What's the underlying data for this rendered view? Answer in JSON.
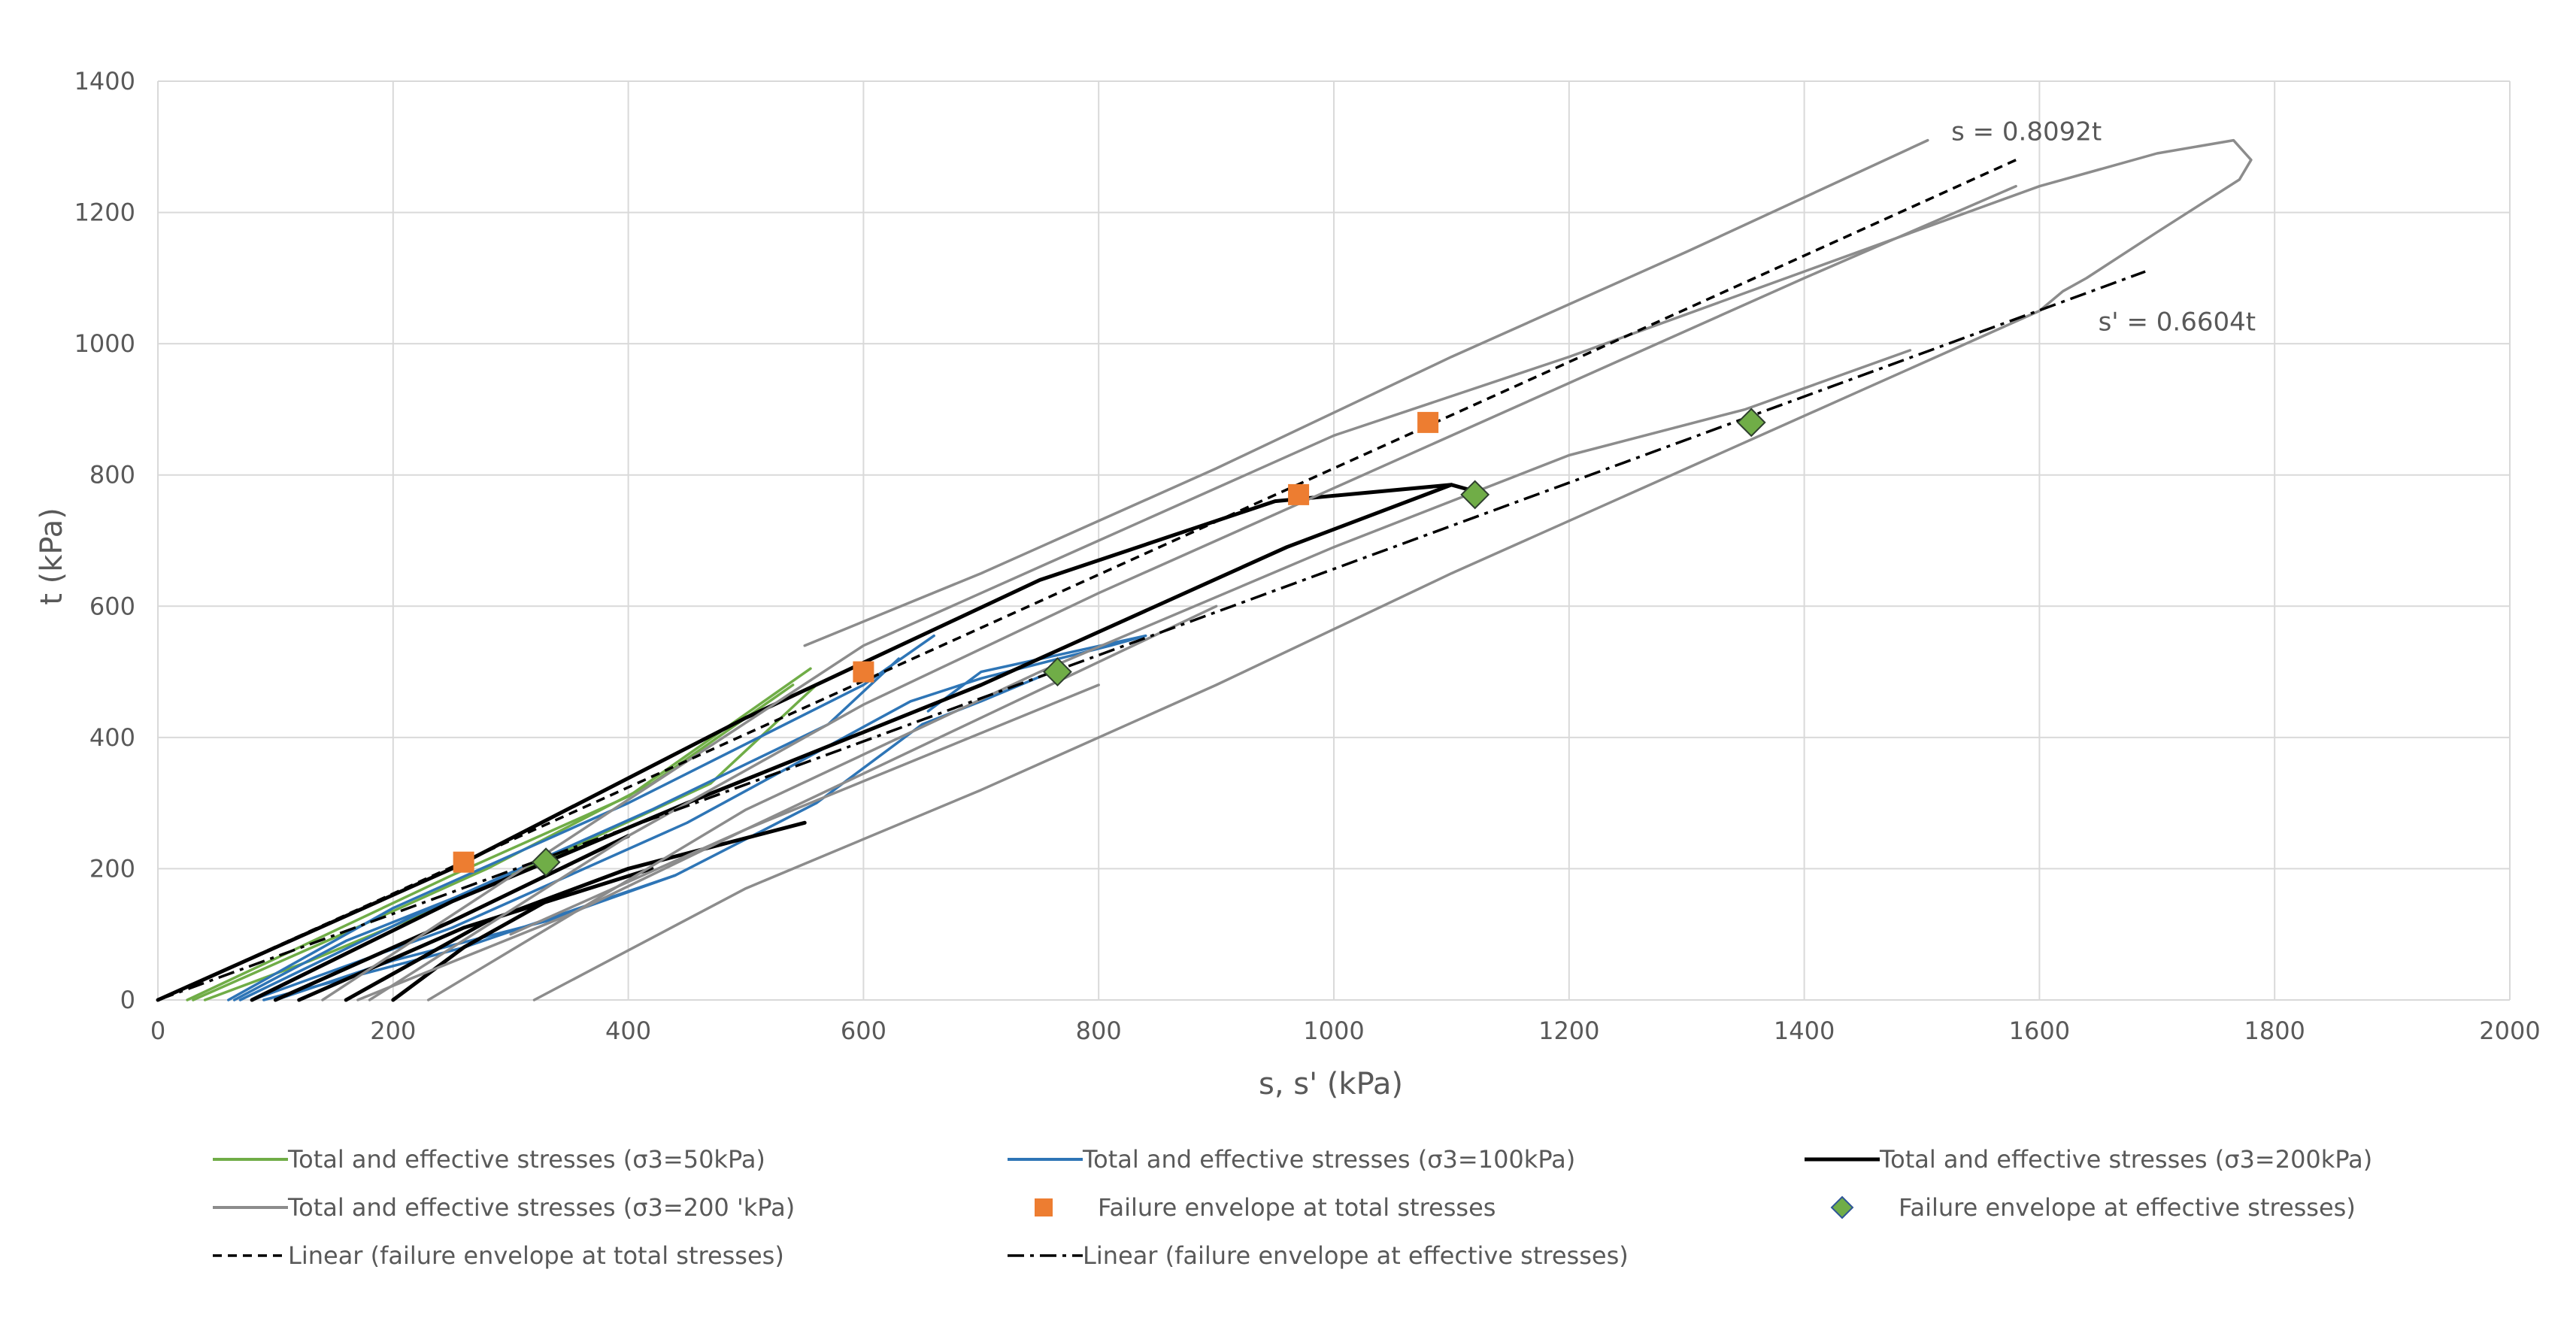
{
  "chart_data": {
    "type": "line",
    "xlabel": "s, s' (kPa)",
    "ylabel": "t (kPa)",
    "xlim": [
      0,
      2000
    ],
    "ylim": [
      0,
      1400
    ],
    "x_ticks": [
      "0",
      "200",
      "400",
      "600",
      "800",
      "1000",
      "1200",
      "1400",
      "1600",
      "1800",
      "2000"
    ],
    "y_ticks": [
      "0",
      "200",
      "400",
      "600",
      "800",
      "1000",
      "1200",
      "1400"
    ],
    "grid": true,
    "legend_position": "bottom",
    "colors": {
      "s50": "#70AD47",
      "s100": "#2E75B6",
      "s200": "#000000",
      "s200p": "#8C8C8C",
      "total_marker": "#ED7D31",
      "eff_marker": "#70AD47",
      "grid": "#D9D9D9",
      "text": "#595959"
    },
    "annotations": [
      {
        "text": "s = 0.8092t",
        "x": 1525,
        "y": 1310
      },
      {
        "text": "s' = 0.6604t",
        "x": 1650,
        "y": 1020
      }
    ],
    "legend": [
      {
        "key": "s50",
        "label": "Total and effective stresses (σ3=50kPa)"
      },
      {
        "key": "s100",
        "label": "Total and effective stresses (σ3=100kPa)"
      },
      {
        "key": "s200",
        "label": "Total and effective stresses (σ3=200kPa)"
      },
      {
        "key": "s200p",
        "label": "Total and effective stresses (σ3=200 'kPa)"
      },
      {
        "key": "total_marker",
        "label": "Failure envelope at total stresses"
      },
      {
        "key": "eff_marker",
        "label": "Failure envelope at effective stresses)"
      },
      {
        "key": "lin_total",
        "label": "Linear (failure envelope at total stresses)"
      },
      {
        "key": "lin_eff",
        "label": "Linear (failure envelope at effective stresses)"
      }
    ],
    "series": [
      {
        "name": "Total and effective stresses (σ3=50kPa)",
        "key": "s50",
        "paths": [
          [
            [
              25,
              0
            ],
            [
              120,
              80
            ],
            [
              250,
              190
            ],
            [
              400,
              310
            ],
            [
              555,
              505
            ]
          ],
          [
            [
              30,
              0
            ],
            [
              150,
              95
            ],
            [
              280,
              200
            ],
            [
              420,
              330
            ],
            [
              540,
              480
            ]
          ],
          [
            [
              40,
              0
            ],
            [
              130,
              60
            ],
            [
              250,
              150
            ],
            [
              350,
              230
            ],
            [
              470,
              330
            ],
            [
              560,
              480
            ]
          ]
        ]
      },
      {
        "name": "Total and effective stresses (σ3=100kPa)",
        "key": "s100",
        "paths": [
          [
            [
              60,
              0
            ],
            [
              200,
              140
            ],
            [
              400,
              300
            ],
            [
              600,
              480
            ],
            [
              660,
              555
            ]
          ],
          [
            [
              70,
              0
            ],
            [
              220,
              130
            ],
            [
              420,
              290
            ],
            [
              570,
              420
            ],
            [
              630,
              520
            ]
          ],
          [
            [
              80,
              0
            ],
            [
              250,
              110
            ],
            [
              450,
              270
            ],
            [
              640,
              455
            ],
            [
              700,
              490
            ],
            [
              810,
              540
            ],
            [
              840,
              555
            ],
            [
              700,
              500
            ],
            [
              655,
              440
            ]
          ],
          [
            [
              90,
              0
            ],
            [
              260,
              80
            ],
            [
              440,
              190
            ],
            [
              560,
              300
            ],
            [
              650,
              420
            ],
            [
              700,
              455
            ],
            [
              760,
              500
            ]
          ],
          [
            [
              100,
              0
            ],
            [
              200,
              60
            ],
            [
              330,
              120
            ],
            [
              440,
              190
            ]
          ],
          [
            [
              65,
              0
            ],
            [
              160,
              90
            ],
            [
              300,
              190
            ]
          ]
        ]
      },
      {
        "name": "Total and effective stresses (σ3=200kPa)",
        "key": "s200",
        "paths": [
          [
            [
              0,
              0
            ],
            [
              250,
              200
            ],
            [
              500,
              430
            ],
            [
              750,
              640
            ],
            [
              950,
              760
            ],
            [
              1100,
              785
            ],
            [
              1120,
              775
            ]
          ],
          [
            [
              80,
              0
            ],
            [
              250,
              150
            ],
            [
              450,
              300
            ],
            [
              700,
              480
            ],
            [
              960,
              690
            ],
            [
              1100,
              785
            ]
          ],
          [
            [
              100,
              0
            ],
            [
              250,
              120
            ],
            [
              400,
              250
            ]
          ],
          [
            [
              120,
              0
            ],
            [
              260,
              110
            ],
            [
              420,
              200
            ]
          ],
          [
            [
              160,
              0
            ],
            [
              280,
              120
            ],
            [
              400,
              200
            ],
            [
              550,
              270
            ]
          ],
          [
            [
              200,
              0
            ],
            [
              260,
              80
            ],
            [
              330,
              150
            ]
          ]
        ]
      },
      {
        "name": "Total and effective stresses (σ3=200 'kPa)",
        "key": "s200p",
        "paths": [
          [
            [
              140,
              0
            ],
            [
              600,
              540
            ],
            [
              800,
              700
            ],
            [
              1000,
              860
            ],
            [
              1200,
              980
            ],
            [
              1400,
              1110
            ],
            [
              1600,
              1240
            ],
            [
              1700,
              1290
            ],
            [
              1765,
              1310
            ],
            [
              1775,
              1290
            ],
            [
              1780,
              1280
            ],
            [
              1770,
              1250
            ],
            [
              1700,
              1170
            ],
            [
              1640,
              1100
            ],
            [
              1620,
              1080
            ],
            [
              1600,
              1050
            ],
            [
              1450,
              930
            ],
            [
              1300,
              810
            ],
            [
              1100,
              650
            ],
            [
              900,
              480
            ],
            [
              700,
              320
            ],
            [
              500,
              170
            ],
            [
              320,
              0
            ]
          ],
          [
            [
              180,
              0
            ],
            [
              400,
              250
            ],
            [
              600,
              450
            ],
            [
              800,
              620
            ],
            [
              1000,
              780
            ],
            [
              1200,
              940
            ],
            [
              1400,
              1100
            ],
            [
              1580,
              1240
            ]
          ],
          [
            [
              230,
              0
            ],
            [
              500,
              290
            ],
            [
              750,
              500
            ],
            [
              1000,
              690
            ],
            [
              1200,
              830
            ],
            [
              1350,
              900
            ],
            [
              1490,
              990
            ]
          ],
          [
            [
              300,
              100
            ],
            [
              500,
              260
            ],
            [
              800,
              480
            ]
          ],
          [
            [
              1505,
              1310
            ],
            [
              1300,
              1140
            ],
            [
              1100,
              980
            ],
            [
              900,
              810
            ],
            [
              700,
              650
            ],
            [
              550,
              540
            ]
          ],
          [
            [
              170,
              0
            ],
            [
              350,
              130
            ],
            [
              500,
              260
            ],
            [
              700,
              430
            ],
            [
              900,
              600
            ]
          ]
        ]
      }
    ],
    "failure_total": [
      [
        260,
        210
      ],
      [
        600,
        500
      ],
      [
        970,
        770
      ],
      [
        1080,
        880
      ]
    ],
    "failure_effective": [
      [
        330,
        210
      ],
      [
        765,
        500
      ],
      [
        1120,
        770
      ],
      [
        1355,
        880
      ]
    ],
    "linear_total": [
      [
        0,
        0
      ],
      [
        1580,
        1280
      ]
    ],
    "linear_effective": [
      [
        0,
        0
      ],
      [
        1690,
        1110
      ]
    ]
  }
}
